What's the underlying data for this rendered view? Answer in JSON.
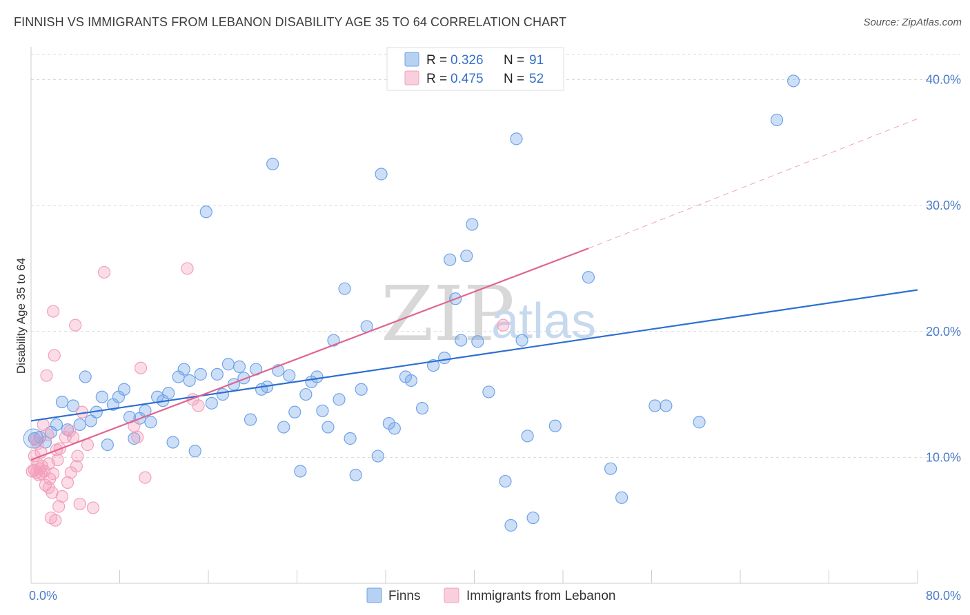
{
  "title": "FINNISH VS IMMIGRANTS FROM LEBANON DISABILITY AGE 35 TO 64 CORRELATION CHART",
  "source": "Source: ZipAtlas.com",
  "watermark": {
    "zip": "ZIP",
    "atlas": "atlas"
  },
  "chart_data": {
    "type": "scatter",
    "ylabel": "Disability Age 35 to 64",
    "xlim": [
      0,
      80
    ],
    "ylim": [
      0,
      42
    ],
    "x_ticks": [
      {
        "value": 0,
        "label": "0.0%"
      },
      {
        "value": 80,
        "label": "80.0%"
      }
    ],
    "y_ticks": [
      {
        "value": 10,
        "label": "10.0%"
      },
      {
        "value": 20,
        "label": "20.0%"
      },
      {
        "value": 30,
        "label": "30.0%"
      },
      {
        "value": 40,
        "label": "40.0%"
      }
    ],
    "legend": {
      "placement": "top-center",
      "rows": [
        {
          "r_label": "R =",
          "r_value": "0.326",
          "n_label": "N =",
          "n_value": "91"
        },
        {
          "r_label": "R =",
          "r_value": "0.475",
          "n_label": "N =",
          "n_value": "52"
        }
      ]
    },
    "series": [
      {
        "name": "Finns",
        "color": "#6fa3e8",
        "line_color": "#2d6fd0",
        "trend": {
          "x0": 0,
          "y0": 12.9,
          "x1": 80,
          "y1": 23.3,
          "dashed_to": null
        },
        "points": [
          [
            0.3,
            11.5
          ],
          [
            0.8,
            11.6
          ],
          [
            1.3,
            11.2
          ],
          [
            1.8,
            12.0
          ],
          [
            2.3,
            12.6
          ],
          [
            2.8,
            14.4
          ],
          [
            3.3,
            12.2
          ],
          [
            3.8,
            14.1
          ],
          [
            4.4,
            12.6
          ],
          [
            4.9,
            16.4
          ],
          [
            5.4,
            12.9
          ],
          [
            5.9,
            13.6
          ],
          [
            6.4,
            14.8
          ],
          [
            6.9,
            11.0
          ],
          [
            7.4,
            14.2
          ],
          [
            7.9,
            14.8
          ],
          [
            8.4,
            15.4
          ],
          [
            8.9,
            13.2
          ],
          [
            9.3,
            11.5
          ],
          [
            9.8,
            13.1
          ],
          [
            10.3,
            13.7
          ],
          [
            10.8,
            12.8
          ],
          [
            11.4,
            14.8
          ],
          [
            11.9,
            14.5
          ],
          [
            12.4,
            15.1
          ],
          [
            12.8,
            11.2
          ],
          [
            13.3,
            16.4
          ],
          [
            13.8,
            17.0
          ],
          [
            14.3,
            16.1
          ],
          [
            14.8,
            10.5
          ],
          [
            15.3,
            16.6
          ],
          [
            15.8,
            29.5
          ],
          [
            16.3,
            14.3
          ],
          [
            16.8,
            16.6
          ],
          [
            17.3,
            15.0
          ],
          [
            17.8,
            17.4
          ],
          [
            18.3,
            15.8
          ],
          [
            18.8,
            17.2
          ],
          [
            19.2,
            16.3
          ],
          [
            19.8,
            13.0
          ],
          [
            20.3,
            17.0
          ],
          [
            20.8,
            15.4
          ],
          [
            21.3,
            15.6
          ],
          [
            21.8,
            33.3
          ],
          [
            22.3,
            16.9
          ],
          [
            22.8,
            12.4
          ],
          [
            23.3,
            16.5
          ],
          [
            23.8,
            13.6
          ],
          [
            24.3,
            8.9
          ],
          [
            24.8,
            15.0
          ],
          [
            25.3,
            16.0
          ],
          [
            25.8,
            16.4
          ],
          [
            26.3,
            13.7
          ],
          [
            26.8,
            12.4
          ],
          [
            27.3,
            19.3
          ],
          [
            27.8,
            14.6
          ],
          [
            28.3,
            23.4
          ],
          [
            28.8,
            11.5
          ],
          [
            29.3,
            8.6
          ],
          [
            29.8,
            15.4
          ],
          [
            30.3,
            20.4
          ],
          [
            31.3,
            10.1
          ],
          [
            31.6,
            32.5
          ],
          [
            32.3,
            12.7
          ],
          [
            32.8,
            12.3
          ],
          [
            33.8,
            16.4
          ],
          [
            34.3,
            16.1
          ],
          [
            35.3,
            13.9
          ],
          [
            36.3,
            17.3
          ],
          [
            37.3,
            17.9
          ],
          [
            37.8,
            25.7
          ],
          [
            38.3,
            22.6
          ],
          [
            38.8,
            19.3
          ],
          [
            39.3,
            26.0
          ],
          [
            39.8,
            28.5
          ],
          [
            40.3,
            19.2
          ],
          [
            41.3,
            15.2
          ],
          [
            42.8,
            8.1
          ],
          [
            43.3,
            4.6
          ],
          [
            43.8,
            35.3
          ],
          [
            44.3,
            19.3
          ],
          [
            44.8,
            11.7
          ],
          [
            45.3,
            5.2
          ],
          [
            47.3,
            12.5
          ],
          [
            50.3,
            24.3
          ],
          [
            52.3,
            9.1
          ],
          [
            53.3,
            6.8
          ],
          [
            56.3,
            14.1
          ],
          [
            57.3,
            14.1
          ],
          [
            60.3,
            12.8
          ],
          [
            67.3,
            36.8
          ],
          [
            68.8,
            39.9
          ]
        ]
      },
      {
        "name": "Immigrants from Lebanon",
        "color": "#f49fbb",
        "line_color": "#e0648f",
        "trend": {
          "x0": 0,
          "y0": 9.8,
          "x1": 50.3,
          "y1": 26.6,
          "dashed_to": {
            "x": 80,
            "y": 36.9
          }
        },
        "points": [
          [
            0.1,
            8.9
          ],
          [
            0.3,
            9.0
          ],
          [
            0.5,
            8.8
          ],
          [
            0.6,
            9.5
          ],
          [
            0.7,
            8.6
          ],
          [
            0.8,
            9.1
          ],
          [
            0.9,
            8.7
          ],
          [
            1.0,
            9.3
          ],
          [
            1.1,
            12.6
          ],
          [
            1.2,
            8.9
          ],
          [
            1.3,
            7.8
          ],
          [
            1.4,
            16.5
          ],
          [
            1.5,
            11.8
          ],
          [
            1.6,
            9.5
          ],
          [
            1.7,
            8.3
          ],
          [
            1.8,
            5.2
          ],
          [
            1.9,
            7.2
          ],
          [
            2.0,
            21.6
          ],
          [
            2.1,
            18.1
          ],
          [
            2.2,
            5.0
          ],
          [
            2.3,
            10.6
          ],
          [
            2.4,
            9.8
          ],
          [
            2.5,
            6.1
          ],
          [
            2.6,
            10.7
          ],
          [
            2.8,
            6.9
          ],
          [
            3.1,
            11.6
          ],
          [
            3.3,
            8.0
          ],
          [
            3.5,
            12.1
          ],
          [
            3.6,
            8.8
          ],
          [
            3.8,
            11.6
          ],
          [
            4.0,
            20.5
          ],
          [
            4.1,
            9.3
          ],
          [
            4.2,
            10.1
          ],
          [
            4.4,
            6.3
          ],
          [
            4.6,
            13.6
          ],
          [
            5.1,
            11.0
          ],
          [
            5.6,
            6.0
          ],
          [
            6.6,
            24.7
          ],
          [
            9.3,
            12.5
          ],
          [
            9.6,
            11.6
          ],
          [
            9.9,
            17.1
          ],
          [
            10.3,
            8.4
          ],
          [
            14.1,
            25.0
          ],
          [
            14.6,
            14.6
          ],
          [
            15.1,
            14.1
          ],
          [
            42.6,
            20.5
          ],
          [
            0.4,
            11.4
          ],
          [
            0.9,
            10.4
          ],
          [
            1.6,
            7.6
          ],
          [
            2.0,
            8.7
          ],
          [
            0.6,
            11.1
          ],
          [
            0.3,
            10.1
          ]
        ]
      }
    ]
  }
}
